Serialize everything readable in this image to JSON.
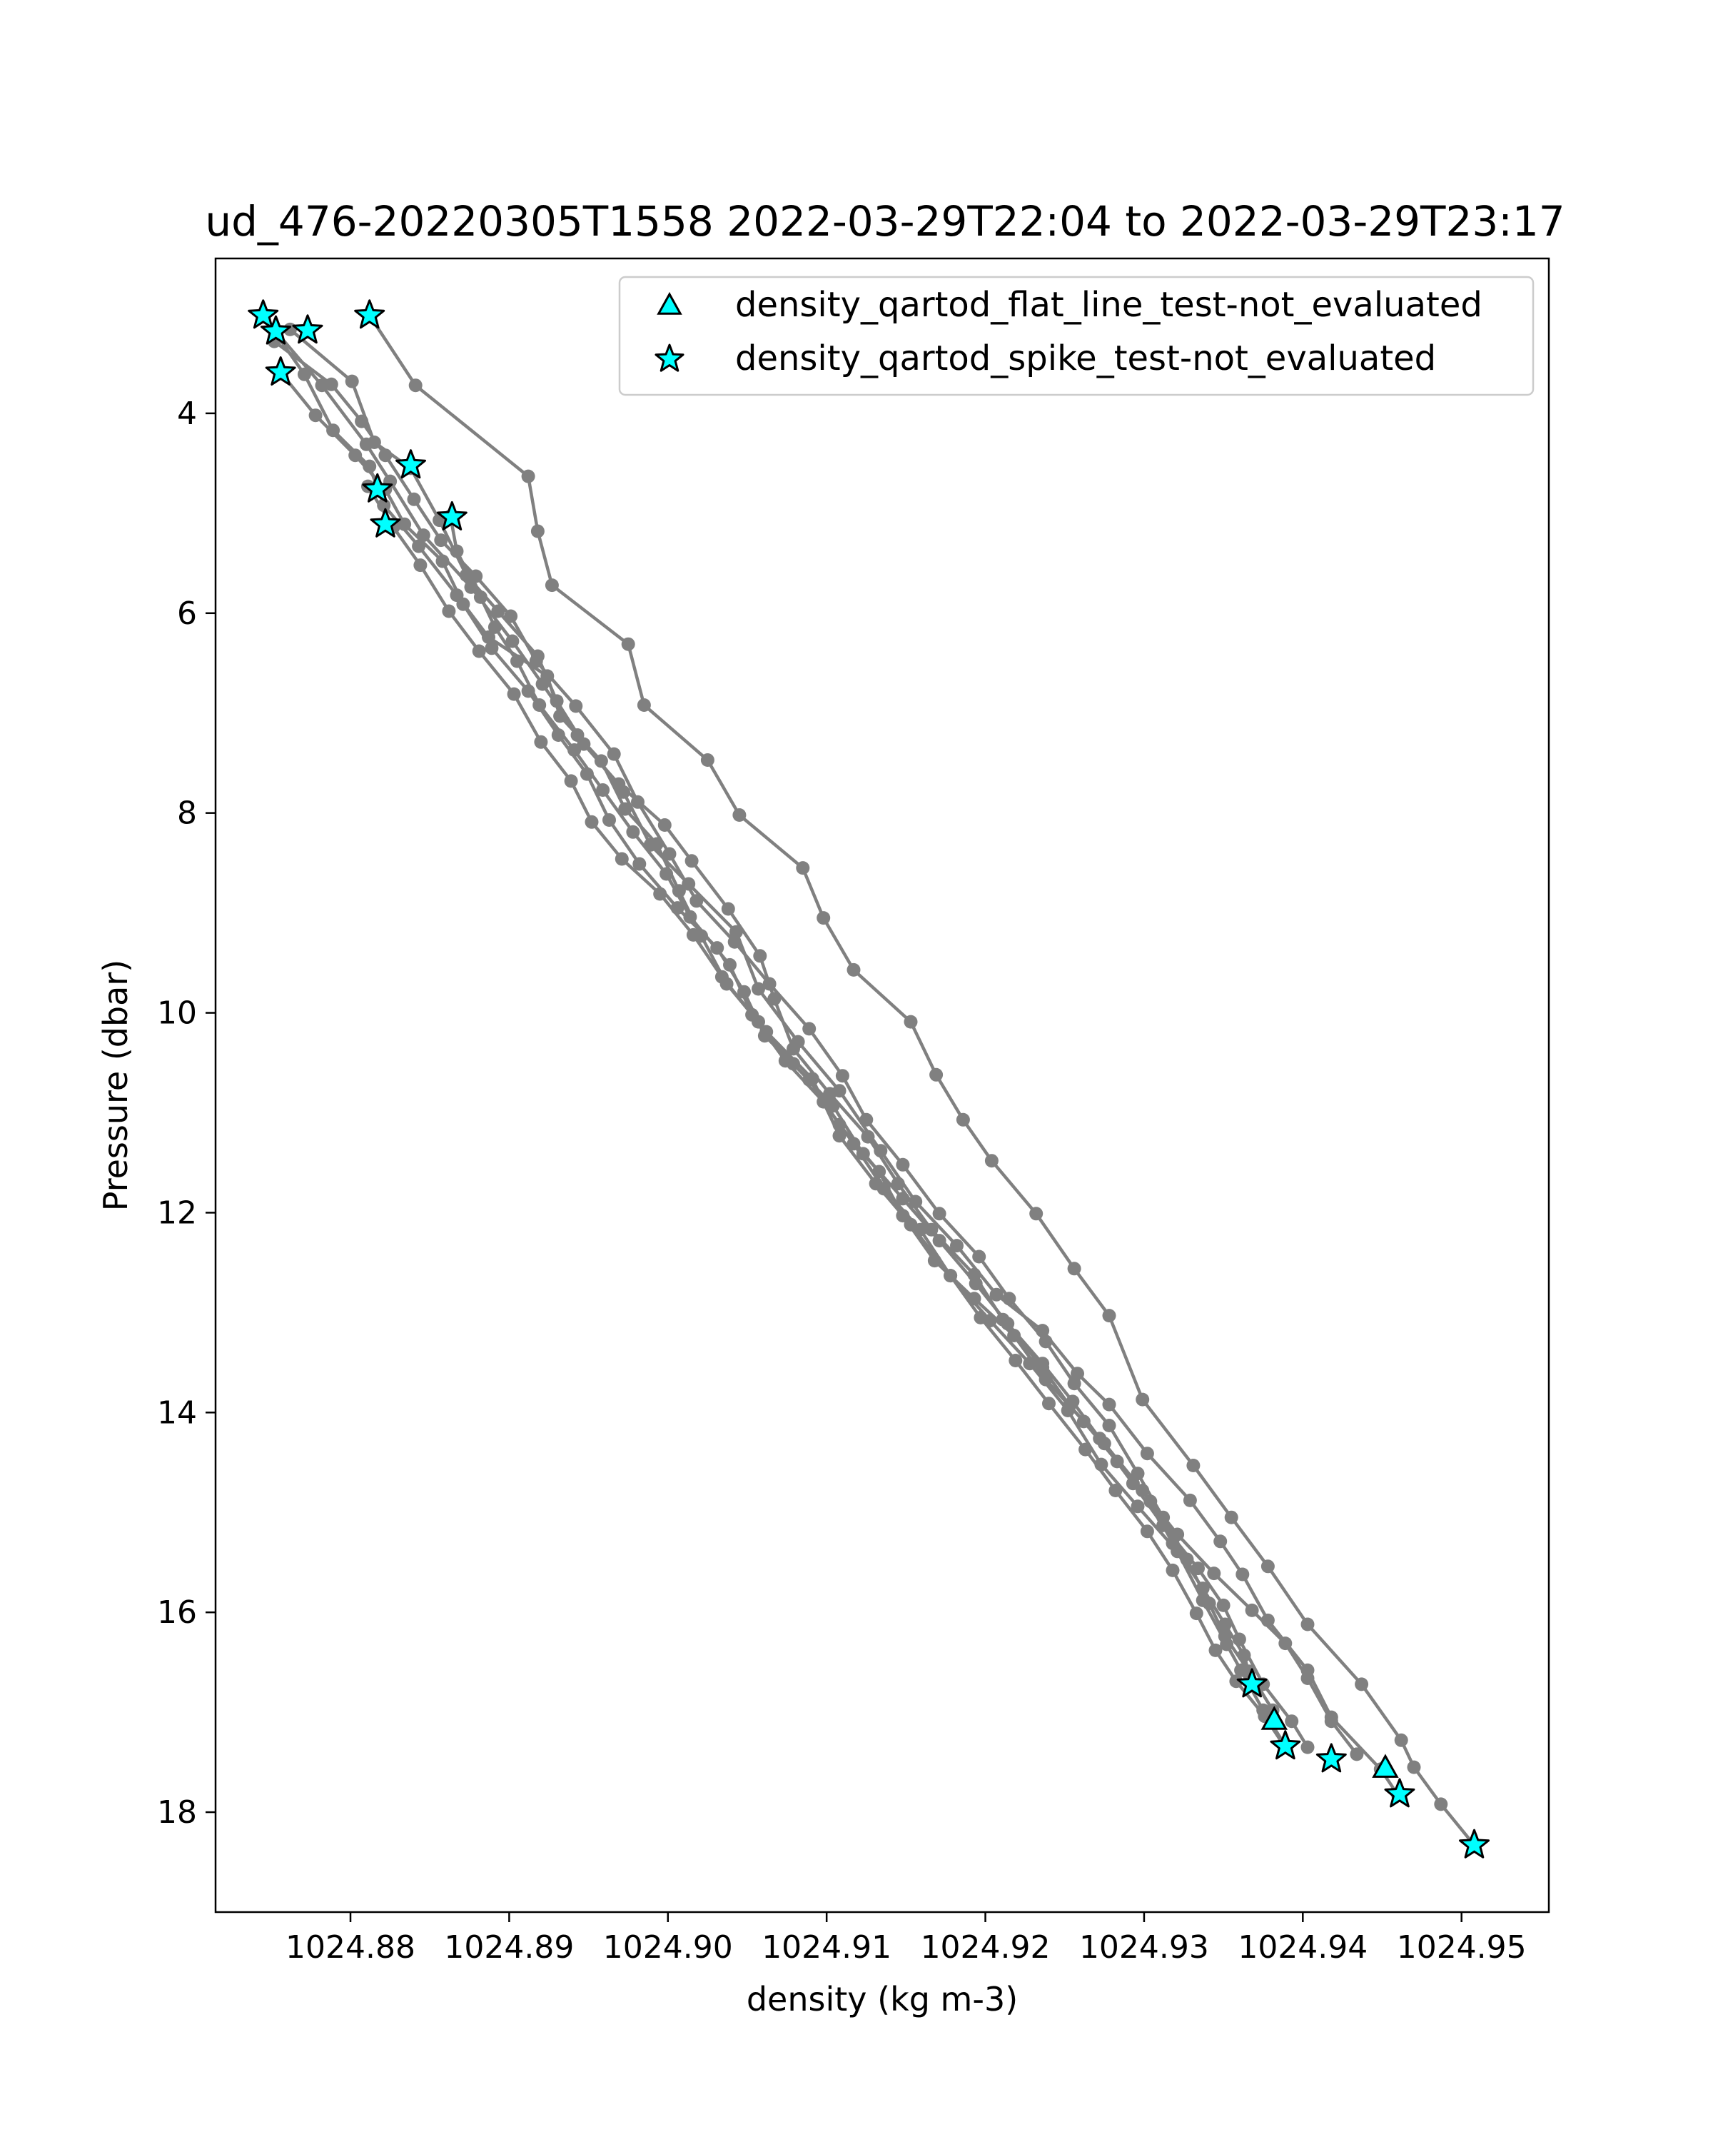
{
  "chart_data": {
    "type": "line",
    "title": "ud_476-20220305T1558 2022-03-29T22:04 to 2022-03-29T23:17",
    "xlabel": "density (kg m-3)",
    "ylabel": "Pressure (dbar)",
    "xlim": [
      1024.8715,
      1024.9555
    ],
    "ylim": [
      19.0,
      2.45
    ],
    "y_inverted": true,
    "grid": false,
    "legend_position": "top-right",
    "x_ticks": [
      1024.88,
      1024.89,
      1024.9,
      1024.91,
      1024.92,
      1024.93,
      1024.94,
      1024.95
    ],
    "x_tick_labels": [
      "1024.88",
      "1024.89",
      "1024.90",
      "1024.91",
      "1024.92",
      "1024.93",
      "1024.94",
      "1024.95"
    ],
    "y_ticks": [
      4,
      6,
      8,
      10,
      12,
      14,
      16,
      18
    ],
    "y_tick_labels": [
      "4",
      "6",
      "8",
      "10",
      "12",
      "14",
      "16",
      "18"
    ],
    "line_color": "#808080",
    "marker_color": "#00ffff",
    "marker_edge_color": "#000000",
    "legend": [
      {
        "label": "density_qartod_flat_line_test-not_evaluated",
        "marker": "triangle"
      },
      {
        "label": "density_qartod_spike_test-not_evaluated",
        "marker": "star"
      }
    ],
    "series": [
      {
        "points": [
          [
            1024.8812,
            3.02
          ],
          [
            1024.8841,
            3.72
          ],
          [
            1024.8912,
            4.63
          ],
          [
            1024.8918,
            5.18
          ],
          [
            1024.8927,
            5.72
          ],
          [
            1024.8975,
            6.31
          ],
          [
            1024.8985,
            6.92
          ],
          [
            1024.9025,
            7.47
          ],
          [
            1024.9045,
            8.02
          ],
          [
            1024.9085,
            8.55
          ],
          [
            1024.9098,
            9.05
          ],
          [
            1024.9117,
            9.57
          ],
          [
            1024.9153,
            10.09
          ],
          [
            1024.9169,
            10.62
          ],
          [
            1024.9186,
            11.07
          ],
          [
            1024.9204,
            11.48
          ],
          [
            1024.9232,
            12.01
          ],
          [
            1024.9256,
            12.56
          ],
          [
            1024.9278,
            13.03
          ],
          [
            1024.9299,
            13.87
          ],
          [
            1024.9331,
            14.53
          ],
          [
            1024.9355,
            15.05
          ],
          [
            1024.9378,
            15.54
          ],
          [
            1024.9403,
            16.12
          ],
          [
            1024.9437,
            16.72
          ],
          [
            1024.9462,
            17.28
          ],
          [
            1024.947,
            17.55
          ],
          [
            1024.9487,
            17.92
          ],
          [
            1024.9508,
            18.33
          ]
        ]
      },
      {
        "points": [
          [
            1024.8753,
            3.18
          ],
          [
            1024.8782,
            3.72
          ],
          [
            1024.881,
            4.31
          ],
          [
            1024.8825,
            4.68
          ],
          [
            1024.8846,
            5.22
          ],
          [
            1024.8876,
            5.74
          ],
          [
            1024.8902,
            6.28
          ],
          [
            1024.8921,
            6.71
          ],
          [
            1024.8943,
            7.22
          ],
          [
            1024.8972,
            7.79
          ],
          [
            1024.8989,
            8.32
          ],
          [
            1024.9013,
            8.71
          ],
          [
            1024.9043,
            9.19
          ],
          [
            1024.9057,
            9.76
          ],
          [
            1024.9082,
            10.29
          ],
          [
            1024.9108,
            10.78
          ],
          [
            1024.9134,
            11.38
          ],
          [
            1024.9156,
            11.89
          ],
          [
            1024.9182,
            12.33
          ],
          [
            1024.9207,
            12.82
          ],
          [
            1024.9236,
            13.18
          ],
          [
            1024.9258,
            13.61
          ],
          [
            1024.9278,
            13.92
          ],
          [
            1024.9302,
            14.41
          ],
          [
            1024.9329,
            14.88
          ],
          [
            1024.9348,
            15.29
          ],
          [
            1024.9362,
            15.62
          ],
          [
            1024.9378,
            16.08
          ],
          [
            1024.9403,
            16.58
          ],
          [
            1024.9418,
            17.05
          ],
          [
            1024.9449,
            17.57
          ],
          [
            1024.946,
            17.83
          ]
        ]
      },
      {
        "points": [
          [
            1024.8745,
            3.02
          ],
          [
            1024.8771,
            3.61
          ],
          [
            1024.8789,
            4.17
          ],
          [
            1024.8812,
            4.53
          ],
          [
            1024.8821,
            4.92
          ],
          [
            1024.8843,
            5.33
          ],
          [
            1024.8867,
            5.82
          ],
          [
            1024.8887,
            6.24
          ],
          [
            1024.8924,
            6.63
          ],
          [
            1024.8932,
            7.03
          ],
          [
            1024.8958,
            7.48
          ],
          [
            1024.8973,
            7.96
          ],
          [
            1024.8993,
            8.31
          ],
          [
            1024.9007,
            8.78
          ],
          [
            1024.9021,
            9.23
          ],
          [
            1024.9037,
            9.71
          ],
          [
            1024.9062,
            10.19
          ],
          [
            1024.9091,
            10.66
          ],
          [
            1024.9108,
            11.23
          ],
          [
            1024.9131,
            11.71
          ],
          [
            1024.9153,
            12.12
          ],
          [
            1024.9178,
            12.63
          ],
          [
            1024.9203,
            13.08
          ],
          [
            1024.9228,
            13.51
          ],
          [
            1024.9252,
            13.98
          ],
          [
            1024.9273,
            14.52
          ],
          [
            1024.9296,
            14.94
          ],
          [
            1024.9321,
            15.39
          ],
          [
            1024.9337,
            15.88
          ],
          [
            1024.9352,
            16.32
          ],
          [
            1024.9361,
            16.58
          ],
          [
            1024.9375,
            16.98
          ],
          [
            1024.9388,
            17.31
          ]
        ]
      },
      {
        "points": [
          [
            1024.8756,
            3.59
          ],
          [
            1024.8778,
            4.02
          ],
          [
            1024.8803,
            4.42
          ],
          [
            1024.8822,
            4.76
          ],
          [
            1024.8834,
            5.11
          ],
          [
            1024.8858,
            5.48
          ],
          [
            1024.8871,
            5.91
          ],
          [
            1024.8889,
            6.35
          ],
          [
            1024.8912,
            6.78
          ],
          [
            1024.8931,
            7.22
          ],
          [
            1024.8949,
            7.61
          ],
          [
            1024.8963,
            8.07
          ],
          [
            1024.8982,
            8.51
          ],
          [
            1024.9006,
            8.95
          ],
          [
            1024.9031,
            9.35
          ],
          [
            1024.9048,
            9.79
          ],
          [
            1024.9061,
            10.23
          ],
          [
            1024.9089,
            10.67
          ],
          [
            1024.9108,
            11.12
          ],
          [
            1024.9133,
            11.59
          ],
          [
            1024.9148,
            12.03
          ],
          [
            1024.9168,
            12.48
          ],
          [
            1024.9193,
            12.86
          ],
          [
            1024.9218,
            13.23
          ],
          [
            1024.9238,
            13.67
          ],
          [
            1024.9262,
            14.09
          ],
          [
            1024.9283,
            14.49
          ],
          [
            1024.9304,
            14.89
          ],
          [
            1024.9318,
            15.31
          ],
          [
            1024.9337,
            15.76
          ],
          [
            1024.9351,
            16.12
          ],
          [
            1024.9363,
            16.43
          ],
          [
            1024.9368,
            16.72
          ]
        ]
      },
      {
        "points": [
          [
            1024.8752,
            3.28
          ],
          [
            1024.8788,
            3.71
          ],
          [
            1024.8807,
            4.08
          ],
          [
            1024.8822,
            4.42
          ],
          [
            1024.884,
            4.86
          ],
          [
            1024.8857,
            5.27
          ],
          [
            1024.8879,
            5.63
          ],
          [
            1024.8901,
            6.03
          ],
          [
            1024.8917,
            6.48
          ],
          [
            1024.8942,
            6.93
          ],
          [
            1024.8966,
            7.41
          ],
          [
            1024.8981,
            7.89
          ],
          [
            1024.9001,
            8.41
          ],
          [
            1024.9018,
            8.88
          ],
          [
            1024.9042,
            9.29
          ],
          [
            1024.9064,
            9.71
          ],
          [
            1024.9089,
            10.16
          ],
          [
            1024.911,
            10.63
          ],
          [
            1024.9125,
            11.07
          ],
          [
            1024.9148,
            11.52
          ],
          [
            1024.9171,
            12.01
          ],
          [
            1024.9196,
            12.44
          ],
          [
            1024.9215,
            12.86
          ],
          [
            1024.9238,
            13.29
          ],
          [
            1024.9256,
            13.71
          ],
          [
            1024.9278,
            14.13
          ],
          [
            1024.9296,
            14.61
          ],
          [
            1024.9312,
            15.05
          ],
          [
            1024.9327,
            15.47
          ],
          [
            1024.9341,
            15.91
          ],
          [
            1024.9351,
            16.24
          ],
          [
            1024.9366,
            16.59
          ],
          [
            1024.9381,
            16.98
          ]
        ]
      },
      {
        "points": [
          [
            1024.8762,
            3.16
          ],
          [
            1024.8801,
            3.68
          ],
          [
            1024.8815,
            4.29
          ],
          [
            1024.8838,
            4.55
          ],
          [
            1024.8856,
            5.07
          ],
          [
            1024.8873,
            5.62
          ],
          [
            1024.8893,
            5.98
          ],
          [
            1024.8918,
            6.43
          ],
          [
            1024.893,
            6.88
          ],
          [
            1024.8947,
            7.31
          ],
          [
            1024.8969,
            7.71
          ],
          [
            1024.8998,
            8.12
          ],
          [
            1024.9015,
            8.48
          ],
          [
            1024.9038,
            8.96
          ],
          [
            1024.9058,
            9.43
          ],
          [
            1024.9067,
            9.86
          ],
          [
            1024.9079,
            10.36
          ],
          [
            1024.9102,
            10.81
          ],
          [
            1024.9126,
            11.24
          ],
          [
            1024.9145,
            11.71
          ],
          [
            1024.9166,
            12.17
          ],
          [
            1024.9193,
            12.62
          ],
          [
            1024.9211,
            13.07
          ],
          [
            1024.9236,
            13.55
          ],
          [
            1024.9253,
            13.93
          ],
          [
            1024.9275,
            14.31
          ],
          [
            1024.9299,
            14.78
          ],
          [
            1024.9321,
            15.22
          ],
          [
            1024.9344,
            15.61
          ],
          [
            1024.9368,
            15.98
          ],
          [
            1024.9389,
            16.31
          ],
          [
            1024.9403,
            16.66
          ],
          [
            1024.9418,
            17.09
          ],
          [
            1024.9434,
            17.42
          ]
        ]
      },
      {
        "points": [
          [
            1024.8811,
            4.73
          ],
          [
            1024.8827,
            5.14
          ],
          [
            1024.8844,
            5.52
          ],
          [
            1024.8862,
            5.98
          ],
          [
            1024.8881,
            6.38
          ],
          [
            1024.8903,
            6.81
          ],
          [
            1024.892,
            7.29
          ],
          [
            1024.8939,
            7.68
          ],
          [
            1024.8952,
            8.09
          ],
          [
            1024.8971,
            8.46
          ],
          [
            1024.8995,
            8.81
          ],
          [
            1024.9016,
            9.22
          ],
          [
            1024.9034,
            9.64
          ],
          [
            1024.9057,
            10.09
          ],
          [
            1024.9079,
            10.51
          ],
          [
            1024.9104,
            10.93
          ],
          [
            1024.9123,
            11.41
          ],
          [
            1024.9148,
            11.86
          ],
          [
            1024.9171,
            12.28
          ],
          [
            1024.9194,
            12.71
          ],
          [
            1024.9214,
            13.11
          ],
          [
            1024.9236,
            13.51
          ],
          [
            1024.9255,
            13.89
          ],
          [
            1024.9272,
            14.26
          ],
          [
            1024.9293,
            14.71
          ],
          [
            1024.9312,
            15.13
          ],
          [
            1024.9334,
            15.56
          ],
          [
            1024.935,
            15.93
          ],
          [
            1024.936,
            16.27
          ],
          [
            1024.9375,
            16.72
          ],
          [
            1024.9393,
            17.09
          ],
          [
            1024.9403,
            17.35
          ]
        ]
      },
      {
        "points": [
          [
            1024.8863,
            5.03
          ],
          [
            1024.8867,
            5.38
          ],
          [
            1024.8882,
            5.84
          ],
          [
            1024.8891,
            6.14
          ],
          [
            1024.8905,
            6.48
          ],
          [
            1024.8919,
            6.92
          ],
          [
            1024.8941,
            7.37
          ],
          [
            1024.8959,
            7.77
          ],
          [
            1024.8978,
            8.19
          ],
          [
            1024.8999,
            8.61
          ],
          [
            1024.9014,
            9.04
          ],
          [
            1024.9039,
            9.52
          ],
          [
            1024.9053,
            10.02
          ],
          [
            1024.9074,
            10.48
          ],
          [
            1024.9098,
            10.89
          ],
          [
            1024.9117,
            11.31
          ],
          [
            1024.9136,
            11.76
          ],
          [
            1024.9159,
            12.17
          ],
          [
            1024.9178,
            12.63
          ],
          [
            1024.9197,
            13.05
          ],
          [
            1024.9219,
            13.48
          ],
          [
            1024.924,
            13.91
          ],
          [
            1024.9263,
            14.37
          ],
          [
            1024.9282,
            14.78
          ],
          [
            1024.9302,
            15.19
          ],
          [
            1024.9318,
            15.58
          ],
          [
            1024.9333,
            16.01
          ],
          [
            1024.9345,
            16.38
          ],
          [
            1024.9358,
            16.69
          ],
          [
            1024.9376,
            17.04
          ],
          [
            1024.9388,
            17.33
          ]
        ]
      }
    ],
    "flat_line_points": [
      [
        1024.9382,
        17.08
      ],
      [
        1024.9452,
        17.56
      ]
    ],
    "spike_points": [
      [
        1024.8745,
        3.02
      ],
      [
        1024.8753,
        3.18
      ],
      [
        1024.8773,
        3.17
      ],
      [
        1024.8812,
        3.02
      ],
      [
        1024.8756,
        3.59
      ],
      [
        1024.8838,
        4.52
      ],
      [
        1024.8817,
        4.76
      ],
      [
        1024.8822,
        5.11
      ],
      [
        1024.8864,
        5.04
      ],
      [
        1024.9368,
        16.72
      ],
      [
        1024.9389,
        17.34
      ],
      [
        1024.9418,
        17.47
      ],
      [
        1024.9461,
        17.82
      ],
      [
        1024.9508,
        18.33
      ]
    ]
  }
}
